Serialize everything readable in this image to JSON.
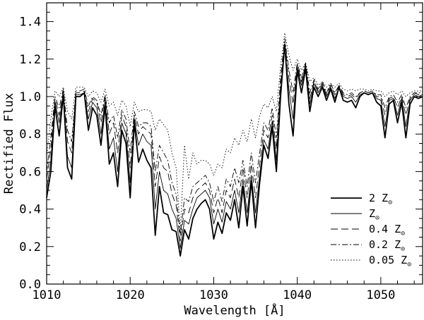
{
  "chart_data": {
    "type": "line",
    "xlabel": "Wavelength [Å]",
    "ylabel": "Rectified Flux",
    "xlim": [
      1010,
      1055
    ],
    "ylim": [
      0.0,
      1.5
    ],
    "xticks": [
      1010,
      1020,
      1030,
      1040,
      1050
    ],
    "yticks": [
      0.0,
      0.2,
      0.4,
      0.6,
      0.8,
      1.0,
      1.2,
      1.4
    ],
    "grid": false,
    "legend_position": "bottom-right",
    "legend_symbol": "⊙",
    "x": [
      1010.0,
      1010.5,
      1011.0,
      1011.5,
      1012.0,
      1012.5,
      1013.0,
      1013.5,
      1014.0,
      1014.5,
      1015.0,
      1015.5,
      1016.0,
      1016.5,
      1017.0,
      1017.5,
      1018.0,
      1018.5,
      1019.0,
      1019.5,
      1020.0,
      1020.5,
      1021.0,
      1021.5,
      1022.0,
      1022.5,
      1023.0,
      1023.5,
      1024.0,
      1024.5,
      1025.0,
      1025.5,
      1026.0,
      1026.5,
      1027.0,
      1027.5,
      1028.0,
      1028.5,
      1029.0,
      1029.5,
      1030.0,
      1030.5,
      1031.0,
      1031.5,
      1032.0,
      1032.5,
      1033.0,
      1033.5,
      1034.0,
      1034.5,
      1035.0,
      1035.5,
      1036.0,
      1036.5,
      1037.0,
      1037.5,
      1038.0,
      1038.5,
      1039.0,
      1039.5,
      1040.0,
      1040.5,
      1041.0,
      1041.5,
      1042.0,
      1042.5,
      1043.0,
      1043.5,
      1044.0,
      1044.5,
      1045.0,
      1045.5,
      1046.0,
      1046.5,
      1047.0,
      1047.5,
      1048.0,
      1048.5,
      1049.0,
      1049.5,
      1050.0,
      1050.5,
      1051.0,
      1051.5,
      1052.0,
      1052.5,
      1053.0,
      1053.5,
      1054.0,
      1054.5,
      1055.0
    ],
    "series": [
      {
        "name": "2 Z",
        "subscript": "⊙",
        "values": [
          0.46,
          0.6,
          0.95,
          0.79,
          1.01,
          0.62,
          0.56,
          1.0,
          1.0,
          1.02,
          0.82,
          0.94,
          0.9,
          0.74,
          0.95,
          0.64,
          0.7,
          0.52,
          0.82,
          0.75,
          0.46,
          0.86,
          0.65,
          0.72,
          0.66,
          0.62,
          0.26,
          0.52,
          0.38,
          0.37,
          0.29,
          0.28,
          0.15,
          0.29,
          0.24,
          0.35,
          0.4,
          0.43,
          0.45,
          0.4,
          0.24,
          0.33,
          0.27,
          0.38,
          0.34,
          0.45,
          0.3,
          0.52,
          0.31,
          0.55,
          0.3,
          0.54,
          0.74,
          0.67,
          0.84,
          0.6,
          1.0,
          1.28,
          0.96,
          0.79,
          1.14,
          1.02,
          1.15,
          0.92,
          1.05,
          1.0,
          1.05,
          0.98,
          1.04,
          0.97,
          1.05,
          0.98,
          0.97,
          0.98,
          0.94,
          1.0,
          1.02,
          1.01,
          1.02,
          0.97,
          0.95,
          0.78,
          0.96,
          0.98,
          0.86,
          0.97,
          0.78,
          0.96,
          1.0,
          0.99,
          1.0
        ]
      },
      {
        "name": "Z",
        "subscript": "⊙",
        "values": [
          0.5,
          0.66,
          0.97,
          0.86,
          1.02,
          0.68,
          0.62,
          1.01,
          1.01,
          1.02,
          0.88,
          0.97,
          0.94,
          0.8,
          0.98,
          0.72,
          0.78,
          0.6,
          0.86,
          0.8,
          0.54,
          0.88,
          0.74,
          0.8,
          0.76,
          0.74,
          0.4,
          0.6,
          0.5,
          0.48,
          0.4,
          0.35,
          0.19,
          0.34,
          0.32,
          0.4,
          0.46,
          0.48,
          0.5,
          0.46,
          0.32,
          0.4,
          0.33,
          0.44,
          0.4,
          0.5,
          0.38,
          0.56,
          0.38,
          0.58,
          0.38,
          0.58,
          0.77,
          0.72,
          0.87,
          0.66,
          1.03,
          1.26,
          1.04,
          0.88,
          1.16,
          1.06,
          1.17,
          0.96,
          1.07,
          1.02,
          1.06,
          1.0,
          1.05,
          0.99,
          1.05,
          1.0,
          0.99,
          1.0,
          0.97,
          1.01,
          1.02,
          1.01,
          1.02,
          0.99,
          0.98,
          0.84,
          0.98,
          0.99,
          0.9,
          0.99,
          0.84,
          0.98,
          1.01,
          1.0,
          1.01
        ]
      },
      {
        "name": "0.4 Z",
        "subscript": "⊙",
        "values": [
          0.56,
          0.72,
          0.99,
          0.9,
          1.03,
          0.76,
          0.7,
          1.02,
          1.02,
          1.03,
          0.92,
          0.99,
          0.97,
          0.86,
          1.0,
          0.8,
          0.86,
          0.7,
          0.9,
          0.84,
          0.62,
          0.9,
          0.8,
          0.84,
          0.82,
          0.8,
          0.52,
          0.68,
          0.62,
          0.6,
          0.48,
          0.42,
          0.23,
          0.4,
          0.38,
          0.46,
          0.5,
          0.52,
          0.54,
          0.5,
          0.38,
          0.46,
          0.38,
          0.5,
          0.46,
          0.56,
          0.46,
          0.62,
          0.46,
          0.64,
          0.46,
          0.64,
          0.82,
          0.78,
          0.9,
          0.72,
          1.06,
          1.29,
          1.1,
          0.96,
          1.17,
          1.08,
          1.17,
          0.99,
          1.08,
          1.03,
          1.07,
          1.01,
          1.06,
          1.01,
          1.06,
          1.01,
          1.0,
          1.01,
          0.99,
          1.02,
          1.03,
          1.02,
          1.03,
          1.0,
          1.0,
          0.9,
          0.99,
          1.0,
          0.94,
          1.0,
          0.9,
          0.99,
          1.02,
          1.01,
          1.02
        ]
      },
      {
        "name": "0.2 Z",
        "subscript": "⊙",
        "values": [
          0.6,
          0.78,
          1.0,
          0.94,
          1.04,
          0.82,
          0.76,
          1.03,
          1.03,
          1.04,
          0.95,
          1.0,
          0.98,
          0.9,
          1.01,
          0.86,
          0.9,
          0.78,
          0.93,
          0.88,
          0.7,
          0.92,
          0.84,
          0.86,
          0.86,
          0.84,
          0.6,
          0.74,
          0.7,
          0.66,
          0.54,
          0.48,
          0.26,
          0.46,
          0.44,
          0.52,
          0.54,
          0.56,
          0.58,
          0.54,
          0.44,
          0.52,
          0.44,
          0.56,
          0.52,
          0.62,
          0.54,
          0.66,
          0.52,
          0.7,
          0.54,
          0.7,
          0.86,
          0.82,
          0.94,
          0.78,
          1.1,
          1.31,
          1.14,
          1.02,
          1.18,
          1.1,
          1.18,
          1.02,
          1.09,
          1.04,
          1.08,
          1.02,
          1.07,
          1.02,
          1.06,
          1.02,
          1.01,
          1.02,
          1.0,
          1.02,
          1.03,
          1.02,
          1.03,
          1.01,
          1.01,
          0.94,
          1.0,
          1.01,
          0.97,
          1.01,
          0.94,
          1.0,
          1.02,
          1.02,
          1.02
        ]
      },
      {
        "name": "0.05 Z",
        "subscript": "⊙",
        "values": [
          0.68,
          0.88,
          1.03,
          1.0,
          1.05,
          0.92,
          0.88,
          1.05,
          1.05,
          1.05,
          1.0,
          1.03,
          1.02,
          0.97,
          1.04,
          0.95,
          0.97,
          0.9,
          0.98,
          0.95,
          0.84,
          0.97,
          0.92,
          0.93,
          0.93,
          0.92,
          0.82,
          0.88,
          0.85,
          0.82,
          0.7,
          0.62,
          0.28,
          0.74,
          0.56,
          0.7,
          0.64,
          0.66,
          0.66,
          0.64,
          0.58,
          0.64,
          0.62,
          0.72,
          0.7,
          0.78,
          0.74,
          0.82,
          0.76,
          0.88,
          0.78,
          0.9,
          0.96,
          0.94,
          1.0,
          0.92,
          1.16,
          1.34,
          1.22,
          1.14,
          1.2,
          1.14,
          1.18,
          1.08,
          1.1,
          1.06,
          1.08,
          1.05,
          1.07,
          1.05,
          1.07,
          1.04,
          1.03,
          1.04,
          1.03,
          1.04,
          1.04,
          1.03,
          1.04,
          1.03,
          1.03,
          1.0,
          1.02,
          1.03,
          1.01,
          1.03,
          1.0,
          1.02,
          1.03,
          1.03,
          1.03
        ]
      }
    ]
  }
}
